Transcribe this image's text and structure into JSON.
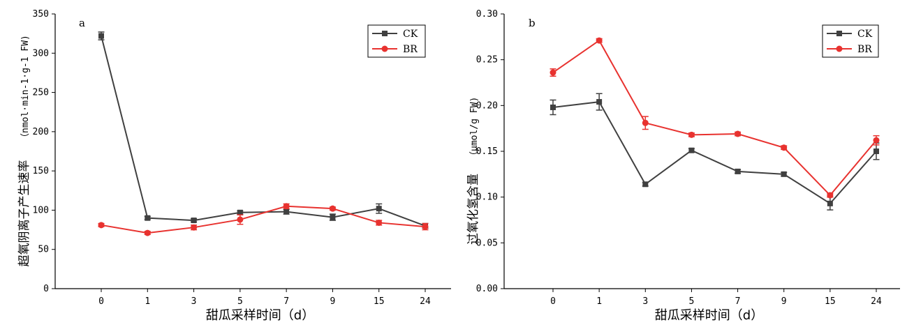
{
  "colors": {
    "CK": "#404040",
    "BR": "#e8322f"
  },
  "chart_data": [
    {
      "type": "line",
      "panel_label": "a",
      "categories": [
        "0",
        "1",
        "3",
        "5",
        "7",
        "9",
        "15",
        "24"
      ],
      "xlabel": "甜瓜采样时间（d）",
      "ylabel_main": "超氧阴离子产生速率",
      "ylabel_unit": "（nmol·min-1·g-1 FW)",
      "ylim": [
        0,
        350
      ],
      "yticks": [
        "0",
        "50",
        "100",
        "150",
        "200",
        "250",
        "300",
        "350"
      ],
      "legend_position": "top-right",
      "grid": false,
      "series": [
        {
          "name": "CK",
          "marker": "square",
          "values": [
            322,
            90,
            87,
            97,
            98,
            91,
            102,
            80
          ],
          "errors": [
            5,
            2,
            2,
            2,
            3,
            4,
            6,
            3
          ]
        },
        {
          "name": "BR",
          "marker": "circle",
          "values": [
            81,
            71,
            78,
            88,
            105,
            102,
            84,
            79
          ],
          "errors": [
            2,
            2,
            3,
            6,
            3,
            2,
            3,
            4
          ]
        }
      ]
    },
    {
      "type": "line",
      "panel_label": "b",
      "categories": [
        "0",
        "1",
        "3",
        "5",
        "7",
        "9",
        "15",
        "24"
      ],
      "xlabel": "甜瓜采样时间（d）",
      "ylabel_main": "过氧化氢含量",
      "ylabel_unit": "（μmol/g FW)",
      "ylim": [
        0,
        0.3
      ],
      "yticks": [
        "0.00",
        "0.05",
        "0.10",
        "0.15",
        "0.20",
        "0.25",
        "0.30"
      ],
      "legend_position": "top-right",
      "grid": false,
      "series": [
        {
          "name": "CK",
          "marker": "square",
          "values": [
            0.198,
            0.204,
            0.114,
            0.151,
            0.128,
            0.125,
            0.093,
            0.15
          ],
          "errors": [
            0.008,
            0.009,
            0.002,
            0.002,
            0.002,
            0.002,
            0.007,
            0.009
          ]
        },
        {
          "name": "BR",
          "marker": "circle",
          "values": [
            0.236,
            0.271,
            0.181,
            0.168,
            0.169,
            0.154,
            0.102,
            0.162
          ],
          "errors": [
            0.004,
            0.002,
            0.007,
            0.002,
            0.002,
            0.002,
            0.002,
            0.005
          ]
        }
      ]
    }
  ]
}
